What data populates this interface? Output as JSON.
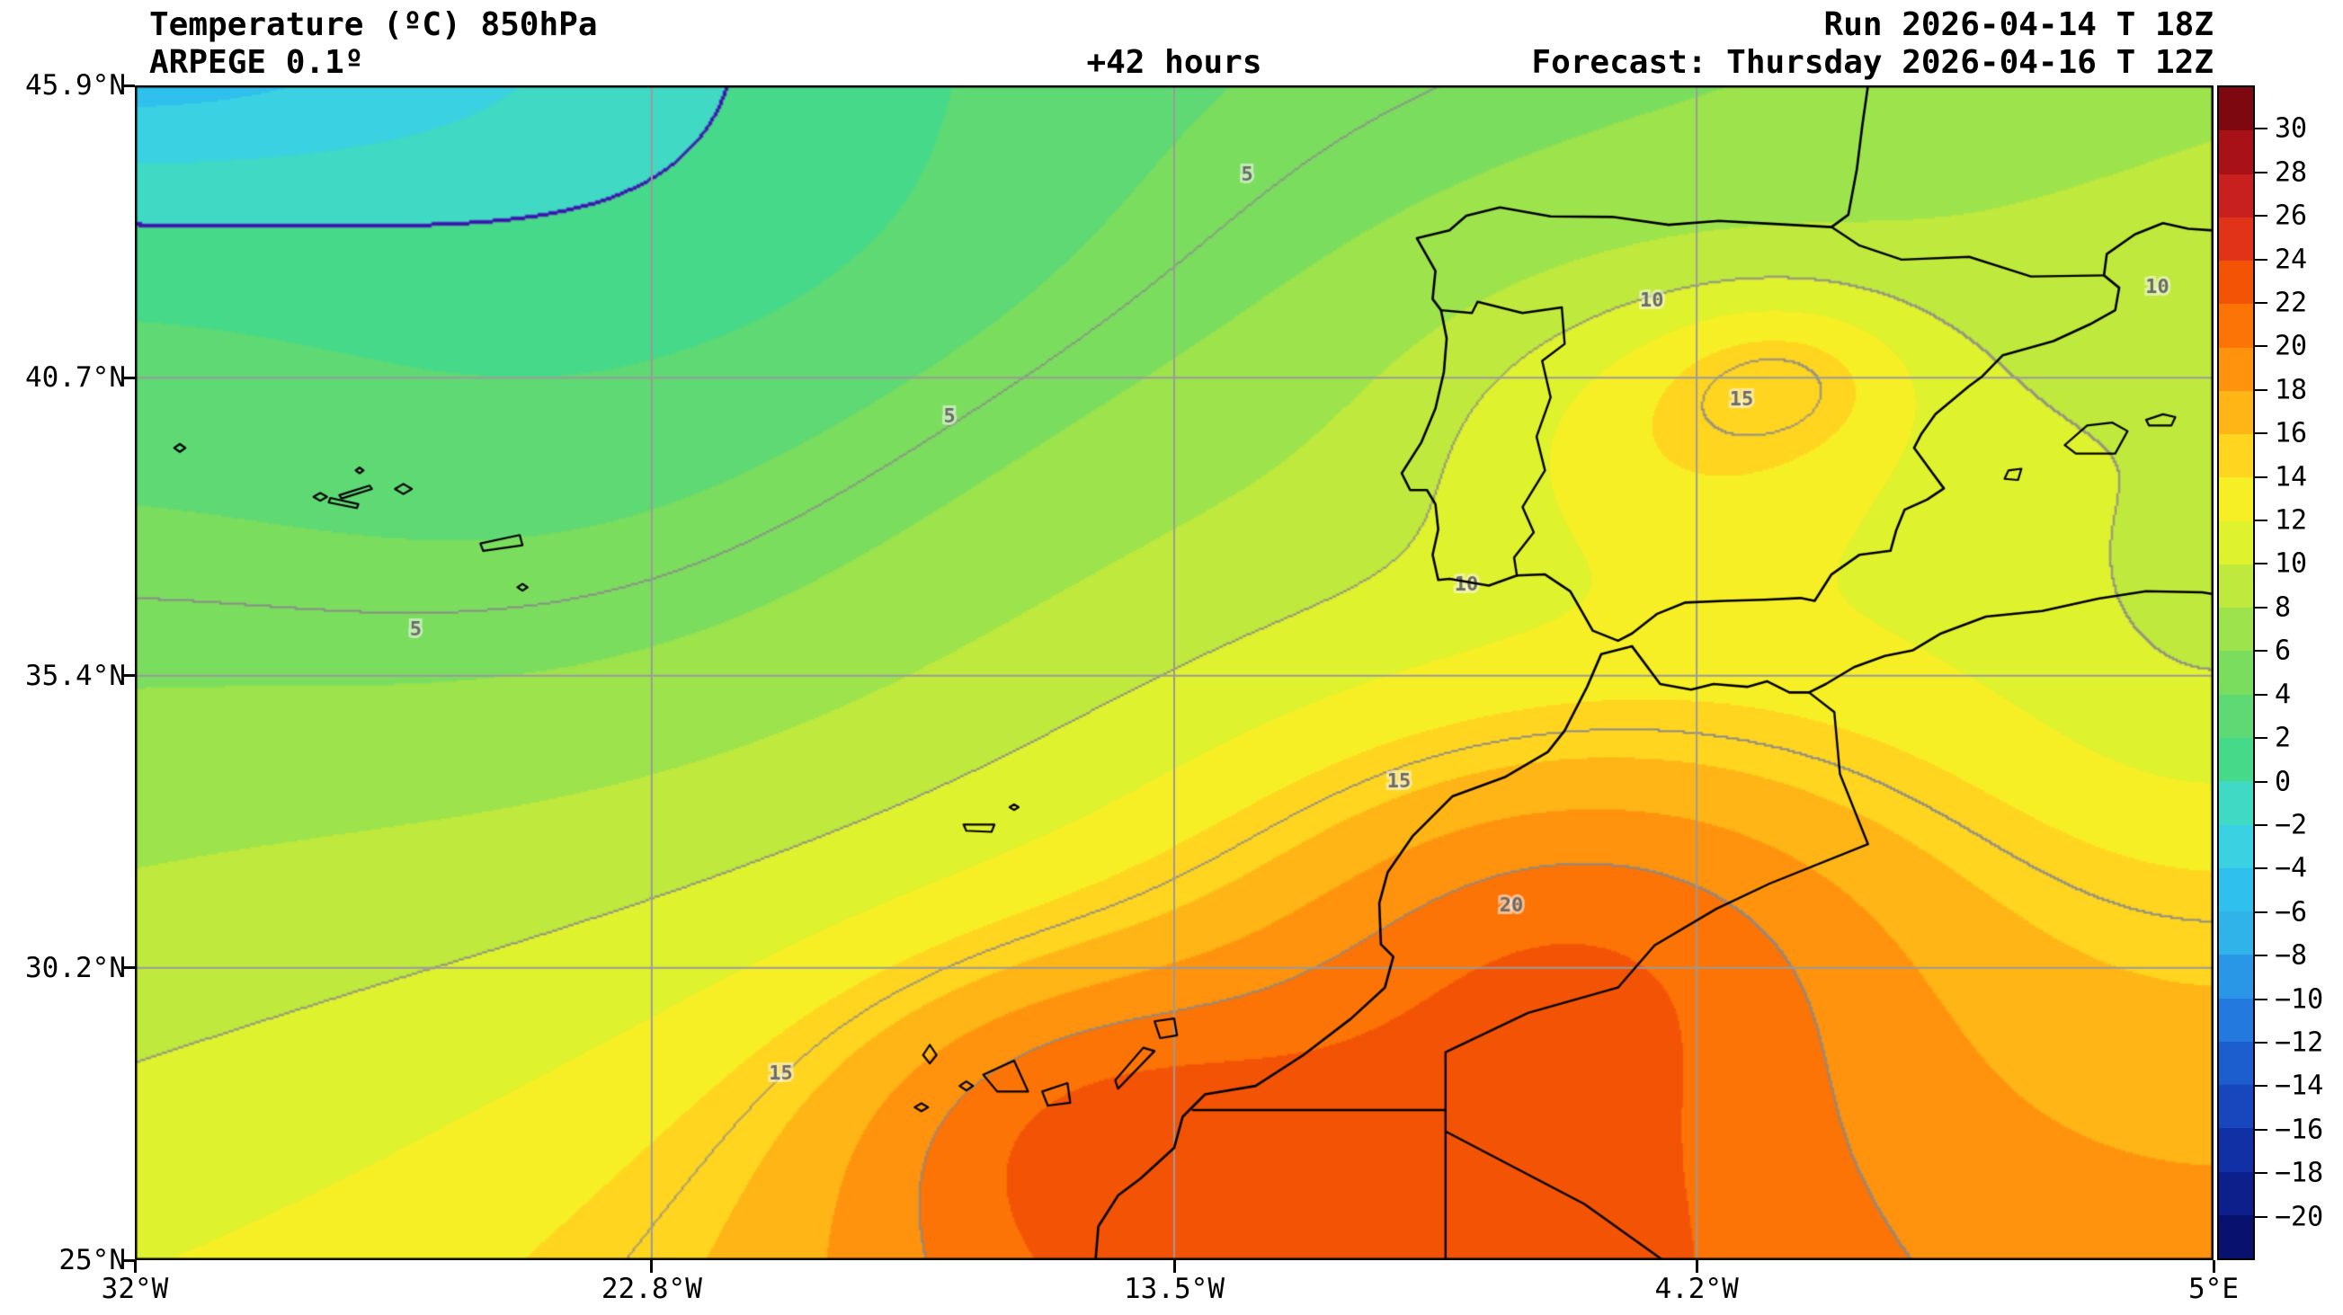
{
  "header": {
    "title_line1": "Temperature (ºC) 850hPa",
    "title_line2": "ARPEGE 0.1º",
    "lead_time": "+42 hours",
    "run_line1": "Run 2026-04-14 T 18Z",
    "run_line2": "Forecast: Thursday 2026-04-16 T 12Z"
  },
  "map": {
    "extent": {
      "lon_min": -32,
      "lon_max": 5,
      "lat_min": 25,
      "lat_max": 45.9
    },
    "x_axis": {
      "ticks": [
        {
          "lon": -32,
          "label": "32°W"
        },
        {
          "lon": -22.8,
          "label": "22.8°W"
        },
        {
          "lon": -13.5,
          "label": "13.5°W"
        },
        {
          "lon": -4.2,
          "label": "4.2°W"
        },
        {
          "lon": 5,
          "label": "5°E"
        }
      ]
    },
    "y_axis": {
      "ticks": [
        {
          "lat": 45.9,
          "label": "45.9°N"
        },
        {
          "lat": 40.7,
          "label": "40.7°N"
        },
        {
          "lat": 35.4,
          "label": "35.4°N"
        },
        {
          "lat": 30.2,
          "label": "30.2°N"
        },
        {
          "lat": 25,
          "label": "25°N"
        }
      ]
    },
    "grid": {
      "lons": [
        -22.8,
        -13.5,
        -4.2
      ],
      "lats": [
        40.7,
        35.4,
        30.2
      ],
      "color": "#9a9a9a"
    },
    "field": {
      "base": {
        "t0": 1.0,
        "per_lon": 6.5,
        "per_lat": 10.8
      },
      "bumps": [
        {
          "amp": -6.0,
          "lon": -32,
          "lat": 47.0,
          "slon": 6.0,
          "slat": 2.2
        },
        {
          "amp": -2.5,
          "lon": -24,
          "lat": 39.5,
          "slon": 5.5,
          "slat": 4.5
        },
        {
          "amp": -1.5,
          "lon": -20,
          "lat": 43.5,
          "slon": 5.0,
          "slat": 2.5
        },
        {
          "amp": 7.5,
          "lon": -11,
          "lat": 25.0,
          "slon": 7.0,
          "slat": 3.5
        },
        {
          "amp": 7.0,
          "lon": -6.5,
          "lat": 31.0,
          "slon": 4.5,
          "slat": 2.8
        },
        {
          "amp": 4.5,
          "lon": -4.5,
          "lat": 39.8,
          "slon": 2.8,
          "slat": 1.8
        },
        {
          "amp": 3.5,
          "lon": -2.5,
          "lat": 40.8,
          "slon": 1.6,
          "slat": 1.0
        },
        {
          "amp": 4.0,
          "lon": -15.5,
          "lat": 27.8,
          "slon": 3.0,
          "slat": 2.0
        },
        {
          "amp": -3.0,
          "lon": 5.5,
          "lat": 35.5,
          "slon": 3.0,
          "slat": 2.5
        }
      ]
    },
    "contours": {
      "gray_levels": [
        5,
        10,
        15,
        20
      ],
      "gray_color": "#8a8a8a",
      "zero_level": 0,
      "zero_color": "#3e0eb0",
      "label_color": "#6a6a6a",
      "labels": [
        {
          "text": "5",
          "lon": -12.2,
          "lat": 44.3
        },
        {
          "text": "5",
          "lon": -17.5,
          "lat": 40.0
        },
        {
          "text": "5",
          "lon": -27.0,
          "lat": 36.2
        },
        {
          "text": "10",
          "lon": -8.3,
          "lat": 37.0
        },
        {
          "text": "10",
          "lon": -5.0,
          "lat": 42.05
        },
        {
          "text": "10",
          "lon": 4.0,
          "lat": 42.3
        },
        {
          "text": "15",
          "lon": -3.4,
          "lat": 40.3
        },
        {
          "text": "15",
          "lon": -9.5,
          "lat": 33.5
        },
        {
          "text": "15",
          "lon": -20.5,
          "lat": 28.3
        },
        {
          "text": "20",
          "lon": -7.5,
          "lat": 31.3
        }
      ]
    },
    "coastlines": [
      [
        [
          -1.15,
          45.9
        ],
        [
          -1.25,
          45.2
        ],
        [
          -1.35,
          44.4
        ],
        [
          -1.5,
          43.6
        ],
        [
          -1.8,
          43.38
        ],
        [
          -2.9,
          43.44
        ],
        [
          -3.8,
          43.49
        ],
        [
          -4.7,
          43.42
        ],
        [
          -5.7,
          43.56
        ],
        [
          -6.8,
          43.57
        ],
        [
          -7.7,
          43.73
        ],
        [
          -8.3,
          43.58
        ],
        [
          -8.6,
          43.32
        ],
        [
          -9.18,
          43.18
        ],
        [
          -8.85,
          42.6
        ],
        [
          -8.9,
          42.1
        ],
        [
          -8.75,
          41.9
        ],
        [
          -8.65,
          41.4
        ],
        [
          -8.7,
          40.8
        ],
        [
          -8.85,
          40.15
        ],
        [
          -9.1,
          39.55
        ],
        [
          -9.45,
          39.0
        ],
        [
          -9.3,
          38.7
        ],
        [
          -9.0,
          38.7
        ],
        [
          -8.85,
          38.45
        ],
        [
          -8.8,
          38.0
        ],
        [
          -8.9,
          37.55
        ],
        [
          -8.8,
          37.1
        ],
        [
          -8.6,
          37.12
        ],
        [
          -7.9,
          37.0
        ],
        [
          -7.4,
          37.18
        ],
        [
          -6.9,
          37.2
        ],
        [
          -6.45,
          36.9
        ],
        [
          -6.25,
          36.55
        ],
        [
          -6.05,
          36.2
        ],
        [
          -5.6,
          36.02
        ],
        [
          -5.35,
          36.15
        ],
        [
          -4.9,
          36.5
        ],
        [
          -4.4,
          36.7
        ],
        [
          -3.7,
          36.73
        ],
        [
          -3.0,
          36.75
        ],
        [
          -2.35,
          36.78
        ],
        [
          -2.1,
          36.73
        ],
        [
          -1.8,
          37.2
        ],
        [
          -1.3,
          37.55
        ],
        [
          -0.75,
          37.62
        ],
        [
          -0.65,
          37.98
        ],
        [
          -0.5,
          38.35
        ],
        [
          -0.1,
          38.53
        ],
        [
          0.2,
          38.73
        ],
        [
          0.0,
          39.0
        ],
        [
          -0.33,
          39.45
        ],
        [
          -0.2,
          39.7
        ],
        [
          0.05,
          40.05
        ],
        [
          0.65,
          40.55
        ],
        [
          0.88,
          40.72
        ],
        [
          1.25,
          41.1
        ],
        [
          2.15,
          41.35
        ],
        [
          2.8,
          41.65
        ],
        [
          3.25,
          41.9
        ],
        [
          3.32,
          42.3
        ],
        [
          3.05,
          42.52
        ],
        [
          3.1,
          42.9
        ],
        [
          3.6,
          43.25
        ],
        [
          4.1,
          43.45
        ],
        [
          4.55,
          43.35
        ],
        [
          5.0,
          43.32
        ]
      ],
      [
        [
          -5.35,
          35.92
        ],
        [
          -5.9,
          35.78
        ],
        [
          -6.15,
          35.2
        ],
        [
          -6.55,
          34.42
        ],
        [
          -6.85,
          34.04
        ],
        [
          -7.6,
          33.6
        ],
        [
          -8.55,
          33.25
        ],
        [
          -9.25,
          32.55
        ],
        [
          -9.7,
          31.9
        ],
        [
          -9.85,
          31.35
        ],
        [
          -9.82,
          30.62
        ],
        [
          -9.6,
          30.4
        ],
        [
          -9.75,
          29.85
        ],
        [
          -10.35,
          29.3
        ],
        [
          -11.2,
          28.65
        ],
        [
          -12.05,
          28.1
        ],
        [
          -12.95,
          27.95
        ],
        [
          -13.35,
          27.55
        ],
        [
          -13.5,
          27.0
        ],
        [
          -14.1,
          26.45
        ],
        [
          -14.5,
          26.15
        ],
        [
          -14.85,
          25.6
        ],
        [
          -14.9,
          25.0
        ]
      ],
      [
        [
          -5.35,
          35.92
        ],
        [
          -4.85,
          35.25
        ],
        [
          -4.3,
          35.15
        ],
        [
          -3.9,
          35.25
        ],
        [
          -3.3,
          35.2
        ],
        [
          -2.95,
          35.3
        ],
        [
          -2.55,
          35.1
        ],
        [
          -2.2,
          35.1
        ],
        [
          -1.9,
          35.25
        ],
        [
          -1.4,
          35.55
        ],
        [
          -0.85,
          35.75
        ],
        [
          -0.35,
          35.85
        ],
        [
          0.15,
          36.15
        ],
        [
          0.95,
          36.45
        ],
        [
          1.95,
          36.55
        ],
        [
          2.95,
          36.77
        ],
        [
          3.8,
          36.9
        ],
        [
          4.8,
          36.88
        ],
        [
          5.0,
          36.85
        ]
      ]
    ],
    "borders": [
      [
        [
          -8.75,
          41.9
        ],
        [
          -8.2,
          41.85
        ],
        [
          -8.1,
          42.05
        ],
        [
          -7.3,
          41.85
        ],
        [
          -6.6,
          41.95
        ],
        [
          -6.55,
          41.3
        ],
        [
          -6.95,
          41.0
        ],
        [
          -6.8,
          40.35
        ],
        [
          -7.05,
          39.65
        ],
        [
          -6.9,
          39.05
        ],
        [
          -7.3,
          38.4
        ],
        [
          -7.1,
          37.95
        ],
        [
          -7.45,
          37.5
        ],
        [
          -7.4,
          37.18
        ]
      ],
      [
        [
          -1.8,
          43.38
        ],
        [
          -1.3,
          43.05
        ],
        [
          -0.55,
          42.8
        ],
        [
          0.65,
          42.85
        ],
        [
          1.75,
          42.5
        ],
        [
          3.05,
          42.52
        ]
      ],
      [
        [
          -2.2,
          35.1
        ],
        [
          -1.75,
          34.75
        ],
        [
          -1.65,
          33.65
        ],
        [
          -1.15,
          32.4
        ],
        [
          -2.9,
          31.7
        ],
        [
          -3.85,
          31.25
        ],
        [
          -4.95,
          30.6
        ],
        [
          -5.6,
          29.85
        ],
        [
          -7.2,
          29.4
        ],
        [
          -8.67,
          28.7
        ],
        [
          -8.67,
          27.67
        ]
      ],
      [
        [
          -13.17,
          27.67
        ],
        [
          -8.67,
          27.67
        ]
      ],
      [
        [
          -8.67,
          27.67
        ],
        [
          -8.67,
          25.0
        ]
      ],
      [
        [
          -8.67,
          27.29
        ],
        [
          -6.2,
          26.0
        ],
        [
          -4.8,
          25.0
        ]
      ]
    ],
    "islands": [
      [
        [
          -13.85,
          29.25
        ],
        [
          -13.5,
          29.3
        ],
        [
          -13.45,
          29.0
        ],
        [
          -13.75,
          28.95
        ]
      ],
      [
        [
          -14.5,
          28.05
        ],
        [
          -13.85,
          28.72
        ],
        [
          -14.05,
          28.78
        ],
        [
          -14.55,
          28.2
        ]
      ],
      [
        [
          -15.85,
          28.0
        ],
        [
          -15.4,
          28.15
        ],
        [
          -15.35,
          27.8
        ],
        [
          -15.75,
          27.75
        ]
      ],
      [
        [
          -16.9,
          28.3
        ],
        [
          -16.35,
          28.55
        ],
        [
          -16.1,
          28.0
        ],
        [
          -16.65,
          28.0
        ]
      ],
      [
        [
          -17.32,
          28.1
        ],
        [
          -17.2,
          28.18
        ],
        [
          -17.08,
          28.1
        ],
        [
          -17.2,
          28.02
        ]
      ],
      [
        [
          -17.97,
          28.65
        ],
        [
          -17.85,
          28.83
        ],
        [
          -17.73,
          28.65
        ],
        [
          -17.85,
          28.5
        ]
      ],
      [
        [
          -18.12,
          27.72
        ],
        [
          -18.0,
          27.79
        ],
        [
          -17.88,
          27.72
        ],
        [
          -18.0,
          27.65
        ]
      ],
      [
        [
          -17.25,
          32.75
        ],
        [
          -16.7,
          32.75
        ],
        [
          -16.75,
          32.62
        ],
        [
          -17.2,
          32.64
        ]
      ],
      [
        [
          -16.43,
          33.06
        ],
        [
          -16.35,
          33.11
        ],
        [
          -16.27,
          33.06
        ],
        [
          -16.35,
          33.01
        ]
      ],
      [
        [
          -25.85,
          37.75
        ],
        [
          -25.15,
          37.9
        ],
        [
          -25.1,
          37.72
        ],
        [
          -25.8,
          37.62
        ]
      ],
      [
        [
          -25.19,
          36.97
        ],
        [
          -25.1,
          37.03
        ],
        [
          -25.01,
          36.97
        ],
        [
          -25.1,
          36.91
        ]
      ],
      [
        [
          -27.37,
          38.72
        ],
        [
          -27.22,
          38.81
        ],
        [
          -27.07,
          38.72
        ],
        [
          -27.22,
          38.63
        ]
      ],
      [
        [
          -28.07,
          39.05
        ],
        [
          -28.0,
          39.1
        ],
        [
          -27.93,
          39.05
        ],
        [
          -28.0,
          39.0
        ]
      ],
      [
        [
          -28.32,
          38.55
        ],
        [
          -27.78,
          38.72
        ],
        [
          -27.82,
          38.78
        ],
        [
          -28.36,
          38.61
        ]
      ],
      [
        [
          -28.55,
          38.48
        ],
        [
          -28.05,
          38.38
        ],
        [
          -28.02,
          38.45
        ],
        [
          -28.52,
          38.56
        ]
      ],
      [
        [
          -28.82,
          38.58
        ],
        [
          -28.7,
          38.65
        ],
        [
          -28.58,
          38.58
        ],
        [
          -28.7,
          38.51
        ]
      ],
      [
        [
          -31.3,
          39.45
        ],
        [
          -31.2,
          39.52
        ],
        [
          -31.1,
          39.45
        ],
        [
          -31.2,
          39.38
        ]
      ],
      [
        [
          1.28,
          38.9
        ],
        [
          1.35,
          39.05
        ],
        [
          1.58,
          39.08
        ],
        [
          1.52,
          38.88
        ]
      ],
      [
        [
          2.35,
          39.5
        ],
        [
          2.75,
          39.85
        ],
        [
          3.2,
          39.9
        ],
        [
          3.47,
          39.75
        ],
        [
          3.25,
          39.35
        ],
        [
          2.55,
          39.35
        ]
      ],
      [
        [
          3.8,
          39.95
        ],
        [
          4.1,
          40.05
        ],
        [
          4.32,
          40.0
        ],
        [
          4.25,
          39.85
        ],
        [
          3.85,
          39.85
        ]
      ]
    ],
    "coast_color": "#000000"
  },
  "colorbar": {
    "tick_labels": [
      "30",
      "28",
      "26",
      "24",
      "22",
      "20",
      "18",
      "16",
      "14",
      "12",
      "10",
      "8",
      "6",
      "4",
      "2",
      "0",
      "−2",
      "−4",
      "−6",
      "−8",
      "−10",
      "−12",
      "−14",
      "−16",
      "−18",
      "−20"
    ],
    "colors_top_to_bottom": [
      "#7d0810",
      "#a81117",
      "#c81f1f",
      "#e13318",
      "#f35305",
      "#fc7405",
      "#ff930d",
      "#ffb515",
      "#ffd51f",
      "#f7ef25",
      "#dff22e",
      "#bfe93c",
      "#9ce34c",
      "#7bdd5e",
      "#5ed973",
      "#46d98a",
      "#40d9c4",
      "#3ad2e2",
      "#2fc0ee",
      "#2fb3e8",
      "#2996e6",
      "#2379dd",
      "#1d5ecf",
      "#1746bd",
      "#1130a6",
      "#0c1f8a",
      "#08126e"
    ],
    "border_color": "#000000"
  }
}
